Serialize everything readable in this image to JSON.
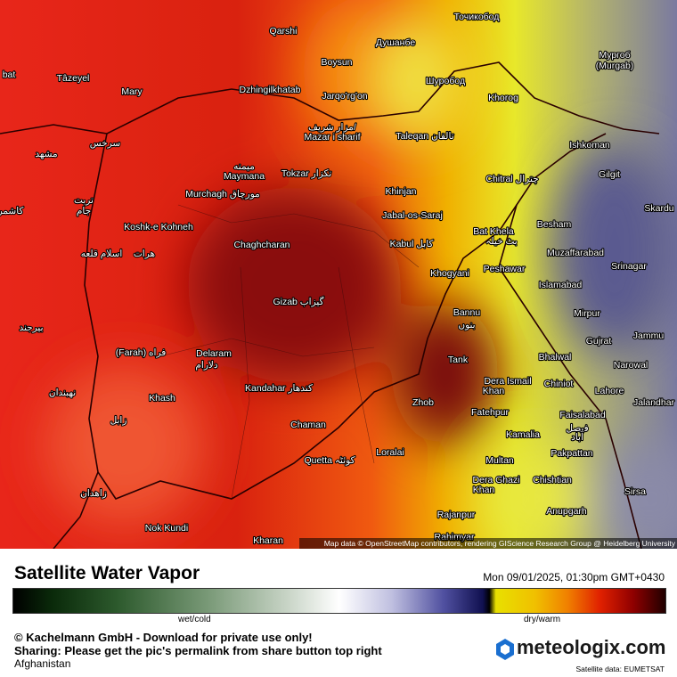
{
  "map": {
    "labels": [
      "Qarshi",
      "Boysun",
      "Душанбе",
      "Точикобод",
      "Мургоб",
      "(Murgab)",
      "bat",
      "Tâzeyel",
      "Mary",
      "Dzhingilkhatab",
      "Jarqo'rg'on",
      "Шуробод",
      "Khorog",
      "مزار شریف/",
      "Mazar i sharif",
      "Taleqan تالقان",
      "Ishkoman",
      "سرخس",
      "مشهد",
      "Gilgit",
      "میمنه",
      "Maymana",
      "Tokzar تکزار",
      "Chitral چترال",
      "Murchagh مورچاق",
      "Khinjan",
      "تربت",
      "جام",
      "Skardu",
      "کاشمر",
      "Jabal-os-Saraj",
      "Besham",
      "Koshk-e Kohneh",
      "Bat Khela",
      "بٹ خیلہ",
      "Kabul کابل",
      "اسلام قلعه",
      "هرات",
      "Chaghcharan",
      "Muzaffarabad",
      "Peshawar",
      "Khogyani",
      "Srinagar",
      "Islamabad",
      "Gizab گیزاب",
      "Mirpur",
      "Bannu",
      "بنوں",
      "بیرجند",
      "Gujrat",
      "Jammu",
      "(Farah) فراه",
      "Delaram",
      "دلارام",
      "Tank",
      "Bhalwal",
      "Narowal",
      "نهبندان",
      "Dera Ismail",
      "Khan",
      "Chiniot",
      "Kandahar کندهار",
      "Khash",
      "Lahore",
      "Jalandhar",
      "Zhob",
      "Fatehpur",
      "Faisalabad",
      "فيصل",
      "آباد",
      "زابل",
      "Chaman",
      "Kamalia",
      "Loralai",
      "Quetta کوئٹہ",
      "Multan",
      "Pakpattan",
      "Dera Ghazi",
      "Khan",
      "Chishtian",
      "زاهدان",
      "Sirsa",
      "Anupgarh",
      "Rajanpur",
      "Nok Kundi",
      "Kharan",
      "Rahimyar"
    ],
    "attribution": "Map data © OpenStreetMap contributors, rendering GIScience Research Group @ Heidelberg University"
  },
  "footer": {
    "title": "Satellite Water Vapor",
    "datetime": "Mon 09/01/2025, 01:30pm GMT+0430",
    "legend_left": "wet/cold",
    "legend_right": "dry/warm",
    "copyright": "© Kachelmann GmbH - Download for private use only!",
    "sharing": "Sharing: Please get the pic's permalink from share button top right",
    "region": "Afghanistan",
    "brand": "meteologix.com",
    "source": "Satellite data: EUMETSAT"
  }
}
